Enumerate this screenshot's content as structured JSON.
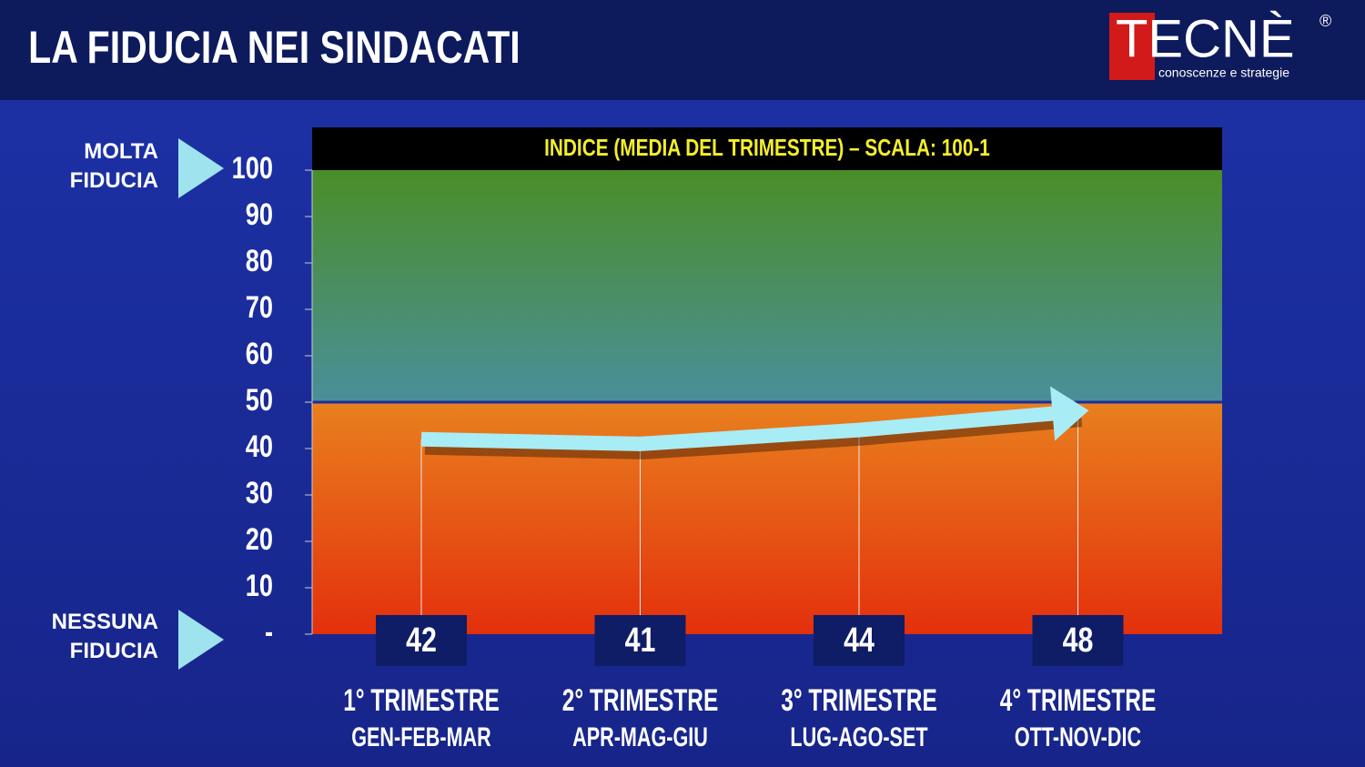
{
  "header": {
    "title": "LA FIDUCIA NEI SINDACATI",
    "logo": "TECNÈ",
    "logo_mark": "®",
    "logo_tagline": "conoscenze e strategie"
  },
  "chart_data": {
    "type": "line",
    "subtitle": "INDICE (MEDIA DEL TRIMESTRE) – SCALA: 100-1",
    "categories": [
      [
        "1° TRIMESTRE",
        "GEN-FEB-MAR"
      ],
      [
        "2° TRIMESTRE",
        "APR-MAG-GIU"
      ],
      [
        "3° TRIMESTRE",
        "LUG-AGO-SET"
      ],
      [
        "4° TRIMESTRE",
        "OTT-NOV-DIC"
      ]
    ],
    "values": [
      42,
      41,
      44,
      48
    ],
    "color": "#a8ecf5",
    "ylim": [
      0,
      100
    ],
    "yticks": [
      {
        "value": 0,
        "label": "-"
      },
      10,
      20,
      30,
      40,
      50,
      60,
      70,
      80,
      90,
      100
    ],
    "threshold": 50,
    "top_label": "MOLTA FIDUCIA",
    "bottom_label": "NESSUNA FIDUCIA"
  }
}
